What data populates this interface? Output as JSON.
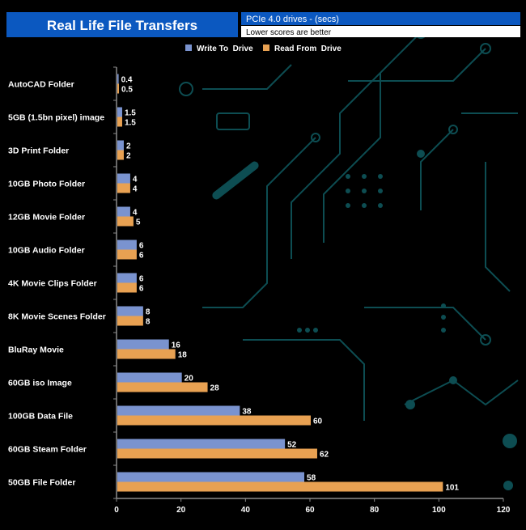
{
  "header": {
    "title": "Real Life File Transfers",
    "subtitle": "PCIe 4.0 drives - (secs)",
    "note": "Lower scores are better"
  },
  "colors": {
    "title_bg": "#0b58c0",
    "write": "#7a93cf",
    "read": "#e8a152",
    "circuit": "#0d4d52",
    "axis": "#8a8a8a",
    "text": "#ffffff"
  },
  "chart_data": {
    "type": "bar",
    "orientation": "horizontal",
    "title": "Real Life File Transfers",
    "subtitle": "PCIe 4.0 drives - (secs)",
    "categories": [
      "AutoCAD Folder",
      "5GB (1.5bn pixel) image",
      "3D Print Folder",
      "10GB Photo Folder",
      "12GB Movie Folder",
      "10GB Audio Folder",
      "4K Movie Clips Folder",
      "8K Movie Scenes Folder",
      "BluRay Movie",
      "60GB iso Image",
      "100GB Data File",
      "60GB Steam Folder",
      "50GB File Folder"
    ],
    "series": [
      {
        "name": "Write To  Drive",
        "values": [
          0.4,
          1.5,
          2,
          4,
          4,
          6,
          6,
          8,
          16,
          20,
          38,
          52,
          58
        ]
      },
      {
        "name": "Read From  Drive",
        "values": [
          0.5,
          1.5,
          2,
          4,
          5,
          6,
          6,
          8,
          18,
          28,
          60,
          62,
          101
        ]
      }
    ],
    "xlim": [
      0,
      120
    ],
    "xticks": [
      "0",
      "20",
      "40",
      "60",
      "80",
      "100",
      "120"
    ],
    "xlabel": "",
    "ylabel": "",
    "legend_position": "top-center",
    "grid": false
  }
}
